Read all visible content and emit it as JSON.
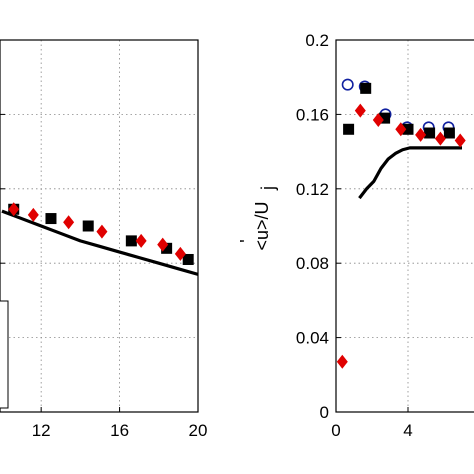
{
  "chart_data": [
    {
      "type": "scatter",
      "xlim": [
        10,
        20
      ],
      "ylim": [
        0.0,
        0.2
      ],
      "grid": true,
      "x_ticks": [
        "12",
        "16",
        "20"
      ],
      "series": [
        {
          "marker": "line",
          "color": "#000000",
          "x": [
            10,
            11,
            12,
            13,
            14,
            15,
            16,
            17,
            18,
            19,
            20
          ],
          "y": [
            0.108,
            0.104,
            0.1,
            0.096,
            0.092,
            0.089,
            0.086,
            0.083,
            0.08,
            0.077,
            0.074
          ]
        },
        {
          "marker": "square",
          "color": "#000000",
          "x": [
            10.6,
            12.5,
            14.4,
            16.6,
            18.4,
            19.5
          ],
          "y": [
            0.109,
            0.104,
            0.1,
            0.092,
            0.088,
            0.082
          ]
        },
        {
          "marker": "diamond",
          "color": "#e00000",
          "x": [
            10.6,
            11.6,
            13.4,
            15.1,
            17.1,
            18.2,
            19.1
          ],
          "y": [
            0.109,
            0.106,
            0.102,
            0.097,
            0.092,
            0.09,
            0.085
          ]
        }
      ]
    },
    {
      "type": "scatter",
      "xlim": [
        0,
        8
      ],
      "ylim": [
        0.0,
        0.2
      ],
      "grid": true,
      "ylabel": "<u'>/Uj",
      "x_ticks": [
        "0",
        "4"
      ],
      "y_ticks": [
        "0",
        "0.04",
        "0.08",
        "0.12",
        "0.16",
        "0.2"
      ],
      "series": [
        {
          "marker": "line",
          "color": "#000000",
          "x": [
            1.3,
            1.7,
            2.1,
            2.5,
            2.9,
            3.3,
            3.7,
            4.1,
            4.5,
            5.0,
            5.5,
            6.0,
            6.5,
            7.0
          ],
          "y": [
            0.115,
            0.12,
            0.124,
            0.131,
            0.136,
            0.139,
            0.141,
            0.142,
            0.142,
            0.142,
            0.142,
            0.142,
            0.142,
            0.142
          ]
        },
        {
          "marker": "circle",
          "color": "#1020a0",
          "x": [
            0.65,
            1.6,
            2.75,
            3.95,
            5.15,
            6.25
          ],
          "y": [
            0.176,
            0.175,
            0.16,
            0.153,
            0.153,
            0.153
          ]
        },
        {
          "marker": "square",
          "color": "#000000",
          "x": [
            0.7,
            1.65,
            2.7,
            4.0,
            5.2,
            6.3
          ],
          "y": [
            0.152,
            0.174,
            0.158,
            0.152,
            0.15,
            0.15
          ]
        },
        {
          "marker": "diamond",
          "color": "#e00000",
          "x": [
            0.35,
            1.35,
            2.35,
            3.6,
            4.7,
            5.8,
            6.9
          ],
          "y": [
            0.027,
            0.162,
            0.157,
            0.152,
            0.149,
            0.147,
            0.146
          ]
        }
      ]
    }
  ]
}
